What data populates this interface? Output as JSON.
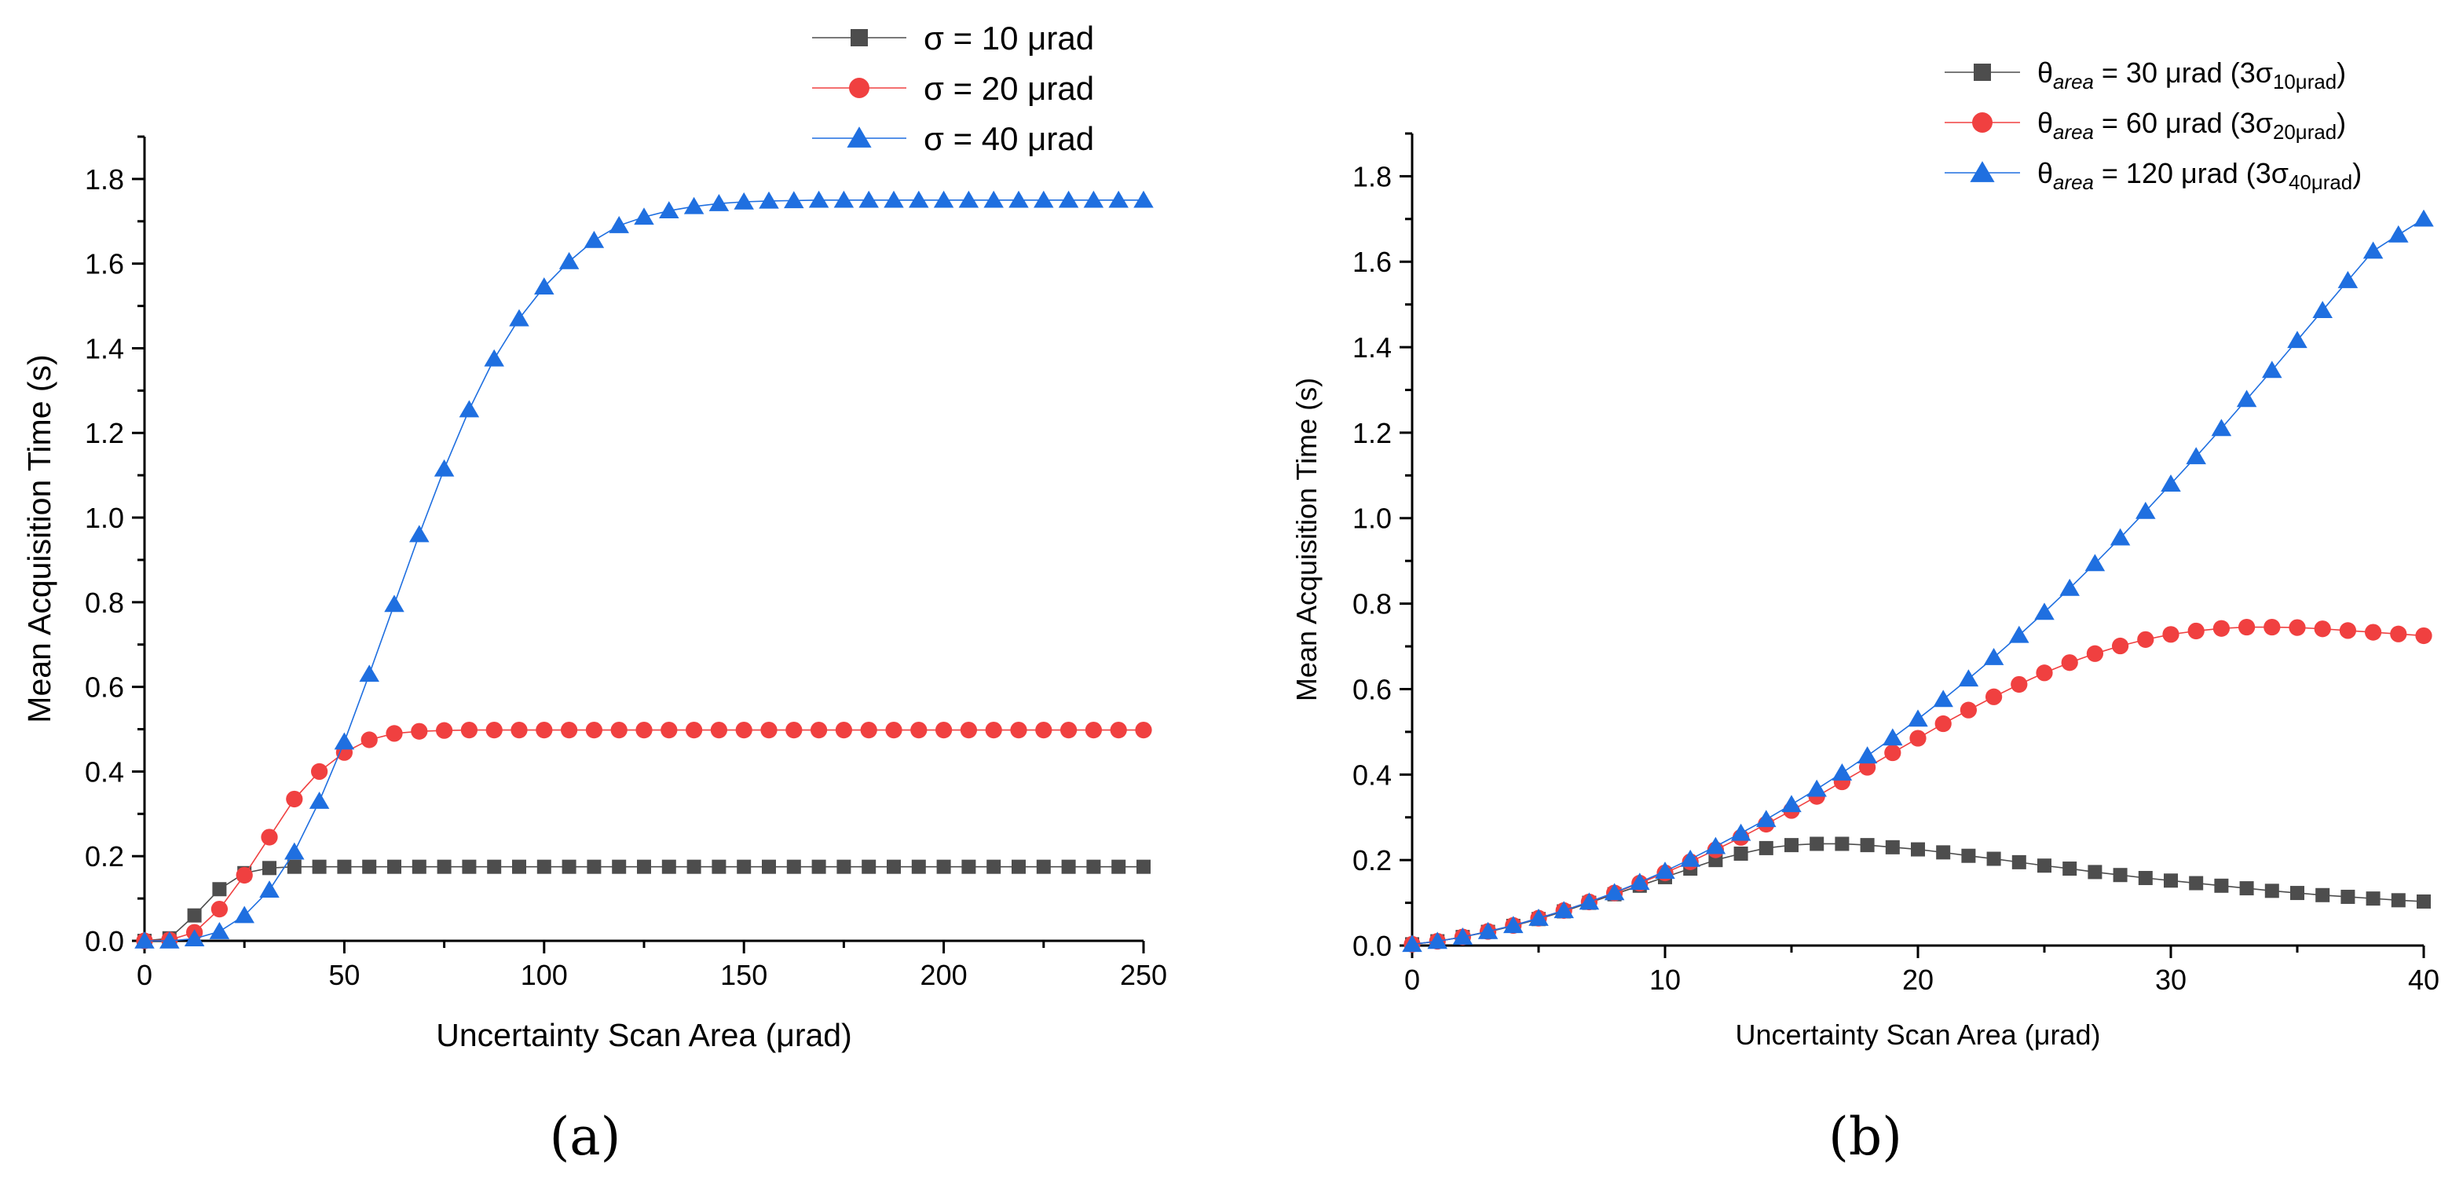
{
  "figure_labels": {
    "a": "(a)",
    "b": "(b)"
  },
  "colors": {
    "series1": "#4d4d4d",
    "series2": "#f04040",
    "series3": "#1f6fe0"
  },
  "chart_data": [
    {
      "id": "a",
      "type": "line",
      "title": "",
      "xlabel": "Uncertainty Scan Area (μrad)",
      "ylabel": "Mean Acquisition Time (s)",
      "xlim": [
        0,
        250
      ],
      "ylim": [
        0,
        1.9
      ],
      "xticks": [
        0,
        50,
        100,
        150,
        200,
        250
      ],
      "xtick_labels": [
        "0",
        "50",
        "100",
        "150",
        "200",
        "250"
      ],
      "yticks": [
        0,
        0.2,
        0.4,
        0.6,
        0.8,
        1.0,
        1.2,
        1.4,
        1.6,
        1.8
      ],
      "ytick_labels": [
        "0.0",
        "0.2",
        "0.4",
        "0.6",
        "0.8",
        "1.0",
        "1.2",
        "1.4",
        "1.6",
        "1.8"
      ],
      "legend_position": "top-right outside",
      "x": [
        0,
        6.25,
        12.5,
        18.75,
        25,
        31.25,
        37.5,
        43.75,
        50,
        56.25,
        62.5,
        68.75,
        75,
        81.25,
        87.5,
        93.75,
        100,
        106.25,
        112.5,
        118.75,
        125,
        131.25,
        137.5,
        143.75,
        150,
        156.25,
        162.5,
        168.75,
        175,
        181.25,
        187.5,
        193.75,
        200,
        206.25,
        212.5,
        218.75,
        225,
        231.25,
        237.5,
        243.75,
        250
      ],
      "series": [
        {
          "name": "σ = 10 μrad",
          "marker": "square",
          "color": "#4d4d4d",
          "values": [
            0.0,
            0.006,
            0.06,
            0.122,
            0.16,
            0.172,
            0.175,
            0.175,
            0.175,
            0.175,
            0.175,
            0.175,
            0.175,
            0.175,
            0.175,
            0.175,
            0.175,
            0.175,
            0.175,
            0.175,
            0.175,
            0.175,
            0.175,
            0.175,
            0.175,
            0.175,
            0.175,
            0.175,
            0.175,
            0.175,
            0.175,
            0.175,
            0.175,
            0.175,
            0.175,
            0.175,
            0.175,
            0.175,
            0.175,
            0.175,
            0.175
          ]
        },
        {
          "name": "σ = 20 μrad",
          "marker": "circle",
          "color": "#f04040",
          "values": [
            0.0,
            0.002,
            0.02,
            0.075,
            0.155,
            0.245,
            0.335,
            0.4,
            0.445,
            0.475,
            0.49,
            0.495,
            0.497,
            0.498,
            0.498,
            0.498,
            0.498,
            0.498,
            0.498,
            0.498,
            0.498,
            0.498,
            0.498,
            0.498,
            0.498,
            0.498,
            0.498,
            0.498,
            0.498,
            0.498,
            0.498,
            0.498,
            0.498,
            0.498,
            0.498,
            0.498,
            0.498,
            0.498,
            0.498,
            0.498,
            0.498
          ]
        },
        {
          "name": "σ = 40 μrad",
          "marker": "triangle",
          "color": "#1f6fe0",
          "values": [
            0.0,
            0.0,
            0.005,
            0.022,
            0.06,
            0.12,
            0.21,
            0.33,
            0.47,
            0.63,
            0.795,
            0.96,
            1.115,
            1.255,
            1.375,
            1.47,
            1.545,
            1.605,
            1.655,
            1.69,
            1.71,
            1.725,
            1.735,
            1.742,
            1.746,
            1.748,
            1.749,
            1.75,
            1.75,
            1.75,
            1.75,
            1.75,
            1.75,
            1.75,
            1.75,
            1.75,
            1.75,
            1.75,
            1.75,
            1.75,
            1.75
          ]
        }
      ]
    },
    {
      "id": "b",
      "type": "line",
      "title": "",
      "xlabel": "Uncertainty Scan Area (μrad)",
      "ylabel": "Mean Acquisition Time (s)",
      "xlim": [
        0,
        40
      ],
      "ylim": [
        0,
        1.9
      ],
      "xticks": [
        0,
        10,
        20,
        30,
        40
      ],
      "xtick_labels": [
        "0",
        "10",
        "20",
        "30",
        "40"
      ],
      "yticks": [
        0,
        0.2,
        0.4,
        0.6,
        0.8,
        1.0,
        1.2,
        1.4,
        1.6,
        1.8
      ],
      "ytick_labels": [
        "0.0",
        "0.2",
        "0.4",
        "0.6",
        "0.8",
        "1.0",
        "1.2",
        "1.4",
        "1.6",
        "1.8"
      ],
      "legend_position": "top-right",
      "x": [
        0,
        1,
        2,
        3,
        4,
        5,
        6,
        7,
        8,
        9,
        10,
        11,
        12,
        13,
        14,
        15,
        16,
        17,
        18,
        19,
        20,
        21,
        22,
        23,
        24,
        25,
        26,
        27,
        28,
        29,
        30,
        31,
        32,
        33,
        34,
        35,
        36,
        37,
        38,
        39,
        40
      ],
      "series": [
        {
          "name": "θarea = 30 μrad (3σ10μrad)",
          "legend_parts": {
            "symbol": "θ",
            "sub1": "area",
            "mid": " = 30 μrad (3σ",
            "sub2": "10μrad",
            "end": ")"
          },
          "marker": "square",
          "color": "#4d4d4d",
          "values": [
            0.003,
            0.01,
            0.02,
            0.032,
            0.046,
            0.062,
            0.08,
            0.1,
            0.12,
            0.14,
            0.16,
            0.18,
            0.2,
            0.215,
            0.228,
            0.235,
            0.238,
            0.238,
            0.235,
            0.23,
            0.225,
            0.218,
            0.21,
            0.203,
            0.195,
            0.187,
            0.18,
            0.172,
            0.165,
            0.158,
            0.152,
            0.146,
            0.14,
            0.134,
            0.128,
            0.123,
            0.118,
            0.114,
            0.11,
            0.106,
            0.103
          ]
        },
        {
          "name": "θarea = 60 μrad (3σ20μrad)",
          "legend_parts": {
            "symbol": "θ",
            "sub1": "area",
            "mid": " = 60 μrad (3σ",
            "sub2": "20μrad",
            "end": ")"
          },
          "marker": "circle",
          "color": "#f04040",
          "values": [
            0.003,
            0.01,
            0.02,
            0.033,
            0.047,
            0.064,
            0.082,
            0.102,
            0.123,
            0.146,
            0.17,
            0.196,
            0.224,
            0.253,
            0.284,
            0.316,
            0.349,
            0.383,
            0.417,
            0.451,
            0.485,
            0.519,
            0.551,
            0.582,
            0.611,
            0.638,
            0.662,
            0.683,
            0.701,
            0.716,
            0.728,
            0.736,
            0.742,
            0.745,
            0.745,
            0.744,
            0.741,
            0.737,
            0.733,
            0.729,
            0.725
          ]
        },
        {
          "name": "θarea = 120 μrad (3σ40μrad)",
          "legend_parts": {
            "symbol": "θ",
            "sub1": "area",
            "mid": " = 120 μrad (3σ",
            "sub2": "40μrad",
            "end": ")"
          },
          "marker": "triangle",
          "color": "#1f6fe0",
          "values": [
            0.003,
            0.01,
            0.02,
            0.033,
            0.047,
            0.064,
            0.082,
            0.102,
            0.124,
            0.148,
            0.174,
            0.202,
            0.232,
            0.263,
            0.295,
            0.33,
            0.366,
            0.404,
            0.444,
            0.486,
            0.53,
            0.576,
            0.624,
            0.674,
            0.726,
            0.78,
            0.836,
            0.894,
            0.954,
            1.016,
            1.08,
            1.144,
            1.21,
            1.278,
            1.346,
            1.416,
            1.486,
            1.556,
            1.625,
            1.663,
            1.7
          ]
        }
      ]
    }
  ]
}
